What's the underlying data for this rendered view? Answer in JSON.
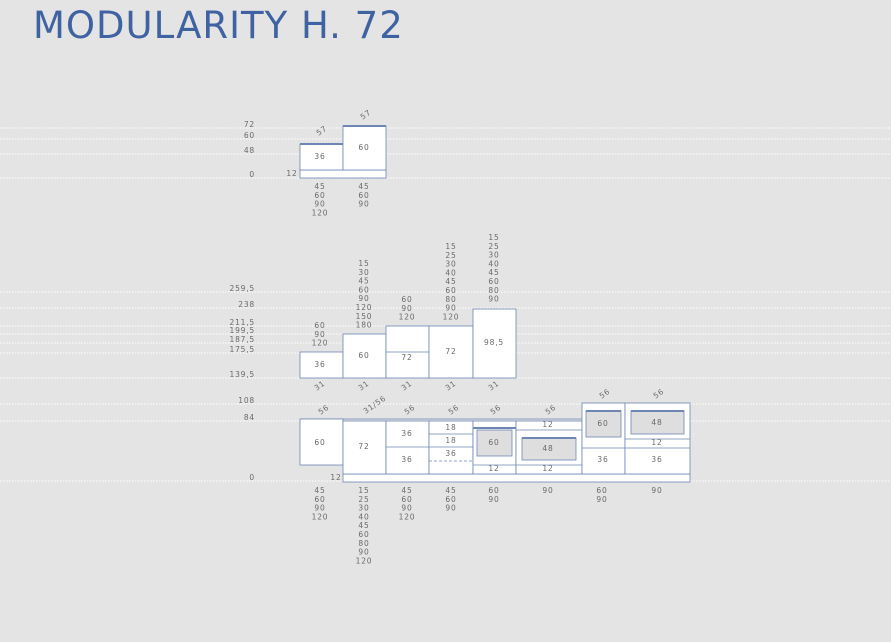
{
  "title": "MODULARITY H. 72",
  "section1": {
    "levels": [
      "72",
      "60",
      "48",
      "0"
    ],
    "base_label": "12",
    "top_labels": [
      "57",
      "57"
    ],
    "box_labels": [
      "36",
      "60"
    ],
    "depth_options": [
      [
        "45",
        "60",
        "90",
        "120"
      ],
      [
        "45",
        "60",
        "90"
      ]
    ]
  },
  "section2": {
    "levels": [
      "259,5",
      "238",
      "211,5",
      "199,5",
      "187,5",
      "175,5",
      "139,5"
    ],
    "box_labels": [
      "36",
      "60",
      "72",
      "72",
      "98,5"
    ],
    "height_options": [
      [
        "60",
        "90",
        "120"
      ],
      [
        "15",
        "30",
        "45",
        "60",
        "90",
        "120",
        "150",
        "180"
      ],
      [
        "60",
        "90",
        "120"
      ],
      [
        "15",
        "25",
        "30",
        "40",
        "45",
        "60",
        "80",
        "90",
        "120"
      ],
      [
        "15",
        "25",
        "30",
        "40",
        "45",
        "60",
        "80",
        "90"
      ]
    ],
    "depth_labels": [
      "31",
      "31",
      "31",
      "31",
      "31"
    ]
  },
  "section3": {
    "levels": [
      "108",
      "84",
      "0"
    ],
    "base_label": "12",
    "top_labels": [
      "56",
      "31/56",
      "56",
      "56",
      "56",
      "56",
      "56",
      "56"
    ],
    "box_labels": [
      "60",
      "72",
      "36",
      "36",
      "18",
      "18",
      "36",
      "60",
      "12",
      "12",
      "48",
      "12",
      "60",
      "36",
      "48",
      "12",
      "36"
    ],
    "depth_options": [
      [
        "45",
        "60",
        "90",
        "120"
      ],
      [
        "15",
        "25",
        "30",
        "40",
        "45",
        "60",
        "80",
        "90",
        "120"
      ],
      [
        "45",
        "60",
        "90",
        "120"
      ],
      [
        "45",
        "60",
        "90"
      ],
      [
        "60",
        "90"
      ],
      [
        "90"
      ],
      [
        "60",
        "90"
      ],
      [
        "90"
      ]
    ]
  }
}
